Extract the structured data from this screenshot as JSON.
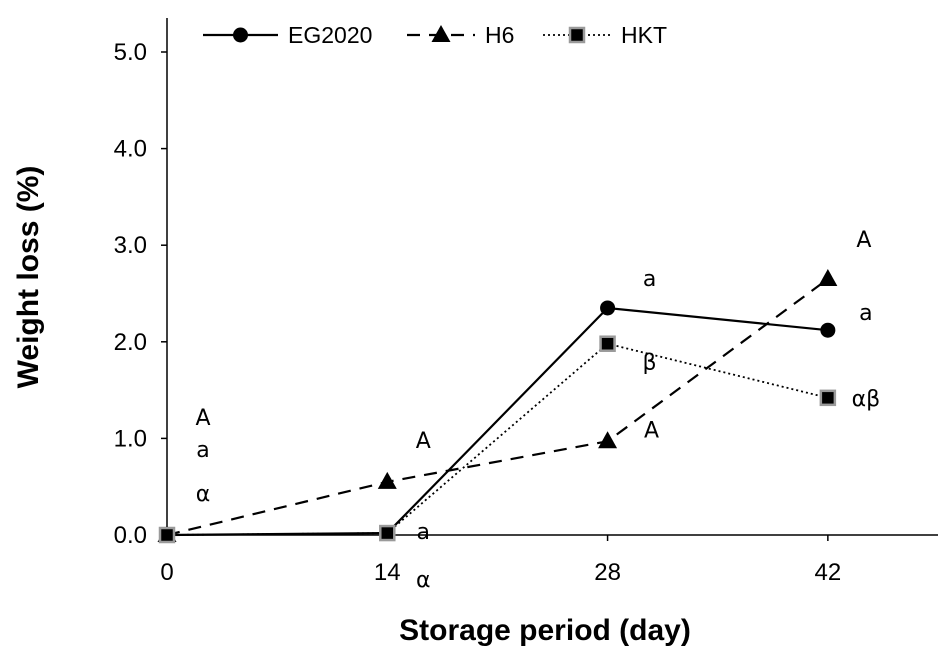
{
  "chart_data": {
    "type": "line",
    "title": "",
    "xlabel": "Storage period (day)",
    "ylabel": "Weight loss (%)",
    "x": [
      0,
      14,
      28,
      42
    ],
    "xticks": [
      "0",
      "14",
      "28",
      "42"
    ],
    "xlim": [
      0,
      49
    ],
    "ylim": [
      0,
      5.0
    ],
    "yticks": [
      "0.0",
      "1.0",
      "2.0",
      "3.0",
      "4.0",
      "5.0"
    ],
    "grid": false,
    "legend_position": "top",
    "series": [
      {
        "name": "EG2020",
        "values": [
          0,
          0.02,
          2.35,
          2.12
        ],
        "line": "solid",
        "marker": "circle",
        "labels": [
          "a",
          "a",
          "a",
          "a"
        ]
      },
      {
        "name": "H6",
        "values": [
          0,
          0.55,
          0.97,
          2.65
        ],
        "line": "dashed",
        "marker": "triangle",
        "labels": [
          "A",
          "A",
          "A",
          "A"
        ]
      },
      {
        "name": "HKT",
        "values": [
          0,
          0.02,
          1.98,
          1.42
        ],
        "line": "dotted",
        "marker": "square",
        "labels": [
          "α",
          "α",
          "β",
          "αβ"
        ]
      }
    ]
  }
}
